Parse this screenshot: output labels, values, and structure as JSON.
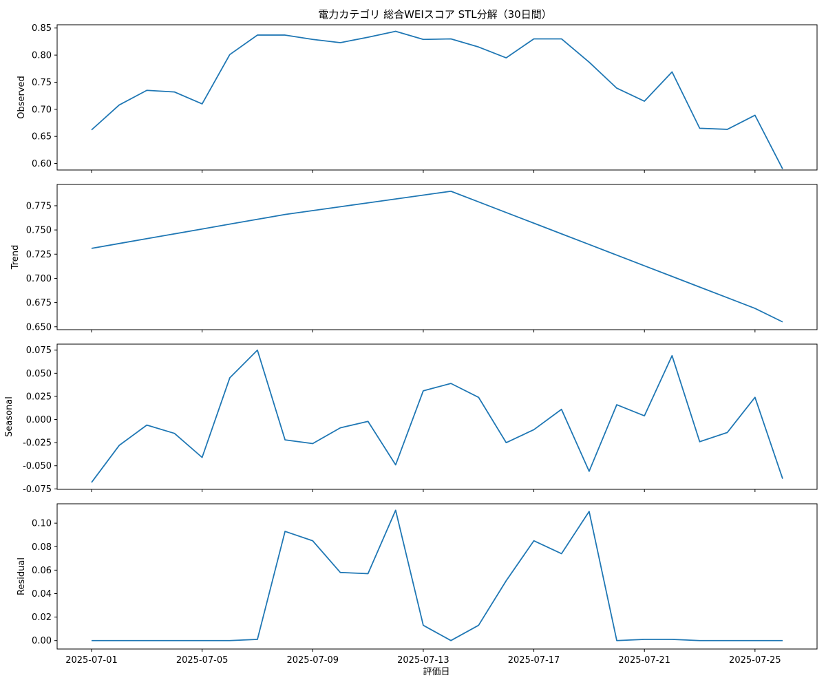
{
  "chart_data": {
    "type": "line",
    "title": "電力カテゴリ 総合WEIスコア STL分解（30日間）",
    "xlabel": "評価日",
    "x": [
      "2025-07-01",
      "2025-07-02",
      "2025-07-03",
      "2025-07-04",
      "2025-07-05",
      "2025-07-06",
      "2025-07-07",
      "2025-07-08",
      "2025-07-09",
      "2025-07-10",
      "2025-07-11",
      "2025-07-12",
      "2025-07-13",
      "2025-07-14",
      "2025-07-15",
      "2025-07-16",
      "2025-07-17",
      "2025-07-18",
      "2025-07-19",
      "2025-07-20",
      "2025-07-21",
      "2025-07-22",
      "2025-07-23",
      "2025-07-24",
      "2025-07-25",
      "2025-07-26"
    ],
    "xticks": [
      "2025-07-01",
      "2025-07-05",
      "2025-07-09",
      "2025-07-13",
      "2025-07-17",
      "2025-07-21",
      "2025-07-25"
    ],
    "grid": false,
    "color": "#1f77b4",
    "panels": [
      {
        "ylabel": "Observed",
        "ylim": [
          0.588,
          0.856
        ],
        "yticks": [
          0.6,
          0.65,
          0.7,
          0.75,
          0.8,
          0.85
        ],
        "tick_decimals": 2,
        "values": [
          0.662,
          0.708,
          0.735,
          0.732,
          0.71,
          0.801,
          0.837,
          0.837,
          0.829,
          0.823,
          0.833,
          0.844,
          0.829,
          0.83,
          0.815,
          0.795,
          0.83,
          0.83,
          0.787,
          0.739,
          0.715,
          0.769,
          0.665,
          0.663,
          0.689,
          0.59
        ]
      },
      {
        "ylabel": "Trend",
        "ylim": [
          0.647,
          0.797
        ],
        "yticks": [
          0.65,
          0.675,
          0.7,
          0.725,
          0.75,
          0.775
        ],
        "tick_decimals": 3,
        "values": [
          0.731,
          0.736,
          0.741,
          0.746,
          0.751,
          0.756,
          0.761,
          0.766,
          0.77,
          0.774,
          0.778,
          0.782,
          0.786,
          0.79,
          0.779,
          0.768,
          0.757,
          0.746,
          0.735,
          0.724,
          0.713,
          0.702,
          0.691,
          0.68,
          0.669,
          0.655
        ]
      },
      {
        "ylabel": "Seasonal",
        "ylim": [
          -0.0755,
          0.0815
        ],
        "yticks": [
          -0.075,
          -0.05,
          -0.025,
          0.0,
          0.025,
          0.05,
          0.075
        ],
        "tick_decimals": 3,
        "values": [
          -0.068,
          -0.028,
          -0.006,
          -0.015,
          -0.041,
          0.045,
          0.075,
          -0.022,
          -0.026,
          -0.009,
          -0.002,
          -0.049,
          0.031,
          0.039,
          0.024,
          -0.025,
          -0.011,
          0.011,
          -0.056,
          0.016,
          0.004,
          0.069,
          -0.024,
          -0.014,
          0.024,
          -0.064
        ]
      },
      {
        "ylabel": "Residual",
        "ylim": [
          -0.0072,
          0.1165
        ],
        "yticks": [
          0.0,
          0.02,
          0.04,
          0.06,
          0.08,
          0.1
        ],
        "tick_decimals": 2,
        "values": [
          0.0,
          0.0,
          0.0,
          0.0,
          0.0,
          0.0,
          0.001,
          0.093,
          0.085,
          0.058,
          0.057,
          0.111,
          0.013,
          0.0,
          0.013,
          0.051,
          0.085,
          0.074,
          0.11,
          0.0,
          0.001,
          0.001,
          0.0,
          0.0,
          0.0,
          0.0
        ]
      }
    ]
  }
}
